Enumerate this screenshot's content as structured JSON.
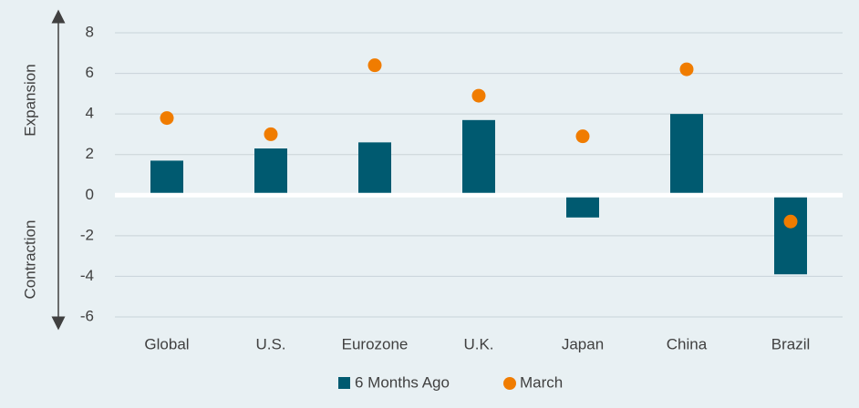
{
  "chart_data": {
    "type": "bar",
    "categories": [
      "Global",
      "U.S.",
      "Eurozone",
      "U.K.",
      "Japan",
      "China",
      "Brazil"
    ],
    "series": [
      {
        "name": "6 Months Ago",
        "color": "#005a70",
        "type": "bar",
        "values": [
          1.7,
          2.3,
          2.6,
          3.7,
          -1.1,
          4.0,
          -3.9
        ]
      },
      {
        "name": "March",
        "color": "#f07c00",
        "type": "dot",
        "values": [
          3.8,
          3.0,
          6.4,
          4.9,
          2.9,
          6.2,
          -1.3
        ]
      }
    ],
    "ylim": [
      -6,
      8
    ],
    "yticks": [
      -6,
      -4,
      -2,
      0,
      2,
      4,
      6,
      8
    ],
    "grid": true,
    "legend": "bottom",
    "annotations": [
      "Expansion",
      "Contraction"
    ]
  }
}
